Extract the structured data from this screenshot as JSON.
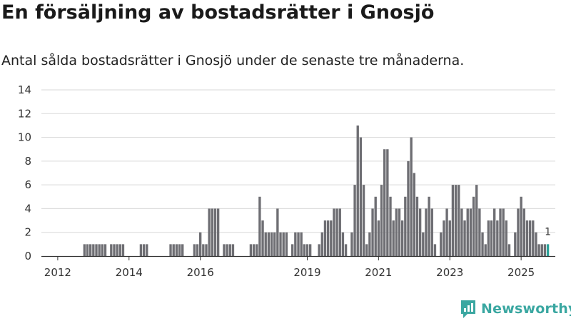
{
  "title": "En försäljning av bostadsrätter i Gnosjö",
  "subtitle": "Antal sålda bostadsrätter i Gnosjö under de senaste tre månaderna.",
  "brand": {
    "name": "Newsworthy",
    "color": "#3aa7a1",
    "logo_icon": "newsworthy-logo-icon"
  },
  "colors": {
    "bar": "#6e6e73",
    "highlight": "#2aa198",
    "grid": "#d9d9d9",
    "axis": "#333333",
    "text": "#333333"
  },
  "chart_data": {
    "type": "bar",
    "title": "En försäljning av bostadsrätter i Gnosjö",
    "xlabel": "",
    "ylabel": "",
    "ylim": [
      0,
      14
    ],
    "yticks": [
      0,
      2,
      4,
      6,
      8,
      10,
      12,
      14
    ],
    "grid": true,
    "x_axis": {
      "start": "2011-08",
      "end": "2025-12",
      "tick_labels": [
        "2012",
        "2014",
        "2016",
        "2019",
        "2021",
        "2023",
        "2025"
      ],
      "tick_dates": [
        "2012-01",
        "2014-01",
        "2016-01",
        "2019-01",
        "2021-01",
        "2023-01",
        "2025-01"
      ]
    },
    "series": [
      {
        "name": "Antal sålda bostadsrätter (rullande tre månader)",
        "values": [
          {
            "date": "2012-10",
            "value": 1
          },
          {
            "date": "2012-11",
            "value": 1
          },
          {
            "date": "2012-12",
            "value": 1
          },
          {
            "date": "2013-01",
            "value": 1
          },
          {
            "date": "2013-02",
            "value": 1
          },
          {
            "date": "2013-03",
            "value": 1
          },
          {
            "date": "2013-04",
            "value": 1
          },
          {
            "date": "2013-05",
            "value": 1
          },
          {
            "date": "2013-07",
            "value": 1
          },
          {
            "date": "2013-08",
            "value": 1
          },
          {
            "date": "2013-09",
            "value": 1
          },
          {
            "date": "2013-10",
            "value": 1
          },
          {
            "date": "2013-11",
            "value": 1
          },
          {
            "date": "2014-05",
            "value": 1
          },
          {
            "date": "2014-06",
            "value": 1
          },
          {
            "date": "2014-07",
            "value": 1
          },
          {
            "date": "2015-03",
            "value": 1
          },
          {
            "date": "2015-04",
            "value": 1
          },
          {
            "date": "2015-05",
            "value": 1
          },
          {
            "date": "2015-06",
            "value": 1
          },
          {
            "date": "2015-07",
            "value": 1
          },
          {
            "date": "2015-11",
            "value": 1
          },
          {
            "date": "2015-12",
            "value": 1
          },
          {
            "date": "2016-01",
            "value": 2
          },
          {
            "date": "2016-02",
            "value": 1
          },
          {
            "date": "2016-03",
            "value": 1
          },
          {
            "date": "2016-04",
            "value": 4
          },
          {
            "date": "2016-05",
            "value": 4
          },
          {
            "date": "2016-06",
            "value": 4
          },
          {
            "date": "2016-07",
            "value": 4
          },
          {
            "date": "2016-09",
            "value": 1
          },
          {
            "date": "2016-10",
            "value": 1
          },
          {
            "date": "2016-11",
            "value": 1
          },
          {
            "date": "2016-12",
            "value": 1
          },
          {
            "date": "2017-06",
            "value": 1
          },
          {
            "date": "2017-07",
            "value": 1
          },
          {
            "date": "2017-08",
            "value": 1
          },
          {
            "date": "2017-09",
            "value": 5
          },
          {
            "date": "2017-10",
            "value": 3
          },
          {
            "date": "2017-11",
            "value": 2
          },
          {
            "date": "2017-12",
            "value": 2
          },
          {
            "date": "2018-01",
            "value": 2
          },
          {
            "date": "2018-02",
            "value": 2
          },
          {
            "date": "2018-03",
            "value": 4
          },
          {
            "date": "2018-04",
            "value": 2
          },
          {
            "date": "2018-05",
            "value": 2
          },
          {
            "date": "2018-06",
            "value": 2
          },
          {
            "date": "2018-08",
            "value": 1
          },
          {
            "date": "2018-09",
            "value": 2
          },
          {
            "date": "2018-10",
            "value": 2
          },
          {
            "date": "2018-11",
            "value": 2
          },
          {
            "date": "2018-12",
            "value": 1
          },
          {
            "date": "2019-01",
            "value": 1
          },
          {
            "date": "2019-02",
            "value": 1
          },
          {
            "date": "2019-05",
            "value": 1
          },
          {
            "date": "2019-06",
            "value": 2
          },
          {
            "date": "2019-07",
            "value": 3
          },
          {
            "date": "2019-08",
            "value": 3
          },
          {
            "date": "2019-09",
            "value": 3
          },
          {
            "date": "2019-10",
            "value": 4
          },
          {
            "date": "2019-11",
            "value": 4
          },
          {
            "date": "2019-12",
            "value": 4
          },
          {
            "date": "2020-01",
            "value": 2
          },
          {
            "date": "2020-02",
            "value": 1
          },
          {
            "date": "2020-04",
            "value": 2
          },
          {
            "date": "2020-05",
            "value": 6
          },
          {
            "date": "2020-06",
            "value": 11
          },
          {
            "date": "2020-07",
            "value": 10
          },
          {
            "date": "2020-08",
            "value": 6
          },
          {
            "date": "2020-09",
            "value": 1
          },
          {
            "date": "2020-10",
            "value": 2
          },
          {
            "date": "2020-11",
            "value": 4
          },
          {
            "date": "2020-12",
            "value": 5
          },
          {
            "date": "2021-01",
            "value": 3
          },
          {
            "date": "2021-02",
            "value": 6
          },
          {
            "date": "2021-03",
            "value": 9
          },
          {
            "date": "2021-04",
            "value": 9
          },
          {
            "date": "2021-05",
            "value": 5
          },
          {
            "date": "2021-06",
            "value": 3
          },
          {
            "date": "2021-07",
            "value": 4
          },
          {
            "date": "2021-08",
            "value": 4
          },
          {
            "date": "2021-09",
            "value": 3
          },
          {
            "date": "2021-10",
            "value": 5
          },
          {
            "date": "2021-11",
            "value": 8
          },
          {
            "date": "2021-12",
            "value": 10
          },
          {
            "date": "2022-01",
            "value": 7
          },
          {
            "date": "2022-02",
            "value": 5
          },
          {
            "date": "2022-03",
            "value": 4
          },
          {
            "date": "2022-04",
            "value": 2
          },
          {
            "date": "2022-05",
            "value": 4
          },
          {
            "date": "2022-06",
            "value": 5
          },
          {
            "date": "2022-07",
            "value": 4
          },
          {
            "date": "2022-08",
            "value": 1
          },
          {
            "date": "2022-10",
            "value": 2
          },
          {
            "date": "2022-11",
            "value": 3
          },
          {
            "date": "2022-12",
            "value": 4
          },
          {
            "date": "2023-01",
            "value": 3
          },
          {
            "date": "2023-02",
            "value": 6
          },
          {
            "date": "2023-03",
            "value": 6
          },
          {
            "date": "2023-04",
            "value": 6
          },
          {
            "date": "2023-05",
            "value": 4
          },
          {
            "date": "2023-06",
            "value": 3
          },
          {
            "date": "2023-07",
            "value": 4
          },
          {
            "date": "2023-08",
            "value": 4
          },
          {
            "date": "2023-09",
            "value": 5
          },
          {
            "date": "2023-10",
            "value": 6
          },
          {
            "date": "2023-11",
            "value": 4
          },
          {
            "date": "2023-12",
            "value": 2
          },
          {
            "date": "2024-01",
            "value": 1
          },
          {
            "date": "2024-02",
            "value": 3
          },
          {
            "date": "2024-03",
            "value": 3
          },
          {
            "date": "2024-04",
            "value": 4
          },
          {
            "date": "2024-05",
            "value": 3
          },
          {
            "date": "2024-06",
            "value": 4
          },
          {
            "date": "2024-07",
            "value": 4
          },
          {
            "date": "2024-08",
            "value": 3
          },
          {
            "date": "2024-09",
            "value": 1
          },
          {
            "date": "2024-11",
            "value": 2
          },
          {
            "date": "2024-12",
            "value": 4
          },
          {
            "date": "2025-01",
            "value": 5
          },
          {
            "date": "2025-02",
            "value": 4
          },
          {
            "date": "2025-03",
            "value": 3
          },
          {
            "date": "2025-04",
            "value": 3
          },
          {
            "date": "2025-05",
            "value": 3
          },
          {
            "date": "2025-06",
            "value": 2
          },
          {
            "date": "2025-07",
            "value": 1
          },
          {
            "date": "2025-08",
            "value": 1
          },
          {
            "date": "2025-09",
            "value": 1
          },
          {
            "date": "2025-10",
            "value": 1
          }
        ]
      }
    ],
    "highlight": {
      "date": "2025-10",
      "value": 1,
      "label": "1"
    }
  }
}
